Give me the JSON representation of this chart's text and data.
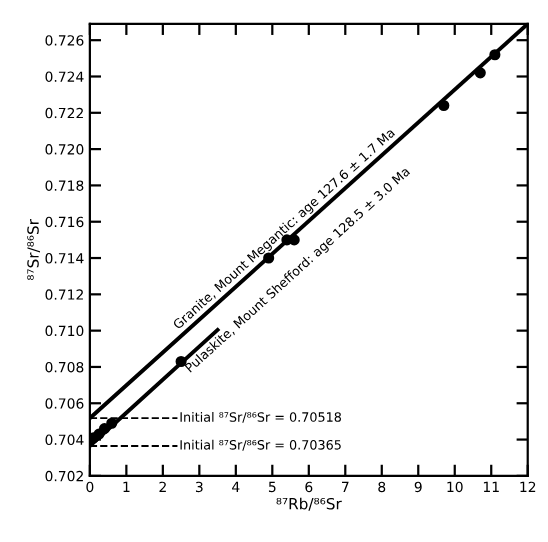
{
  "chart_data": {
    "type": "line",
    "xlabel": "⁸⁷Rb/⁸⁶Sr",
    "ylabel": "⁸⁷Sr/⁸⁶Sr",
    "xlim": [
      0,
      12
    ],
    "ylim": [
      0.702,
      0.7269
    ],
    "xticks": [
      0,
      1,
      2,
      3,
      4,
      5,
      6,
      7,
      8,
      9,
      10,
      11,
      12
    ],
    "yticks": [
      {
        "value": 0.702,
        "label": "0.702"
      },
      {
        "value": 0.704,
        "label": "0.704"
      },
      {
        "value": 0.706,
        "label": "0.706"
      },
      {
        "value": 0.708,
        "label": "0.708"
      },
      {
        "value": 0.71,
        "label": "0.710"
      },
      {
        "value": 0.712,
        "label": "0.712"
      },
      {
        "value": 0.714,
        "label": "0.714"
      },
      {
        "value": 0.716,
        "label": "0.716"
      },
      {
        "value": 0.718,
        "label": "0.718"
      },
      {
        "value": 0.72,
        "label": "0.720"
      },
      {
        "value": 0.722,
        "label": "0.722"
      },
      {
        "value": 0.724,
        "label": "0.724"
      },
      {
        "value": 0.726,
        "label": "0.726"
      }
    ],
    "grid": false,
    "series": [
      {
        "color": "#000000",
        "x": [
          0,
          12
        ],
        "values": [
          0.70518,
          0.7269
        ]
      },
      {
        "type": "scatter",
        "color": "#000000",
        "marker": "circle",
        "x": [
          4.9,
          5.4,
          5.6,
          9.7,
          10.7,
          11.1
        ],
        "values": [
          0.714,
          0.715,
          0.715,
          0.7224,
          0.7242,
          0.7252
        ]
      },
      {
        "color": "#000000",
        "x": [
          0,
          3.5
        ],
        "values": [
          0.70365,
          0.71004
        ]
      },
      {
        "type": "scatter",
        "color": "#000000",
        "marker": "circle",
        "x": [
          0.1,
          0.25,
          0.4,
          0.6,
          2.5
        ],
        "values": [
          0.7041,
          0.7043,
          0.7046,
          0.7049,
          0.7083
        ]
      }
    ],
    "ref_lines": [
      {
        "axis": "y",
        "value": 0.70518,
        "label": "Initial ⁸⁷Sr/⁸⁶Sr = 0.70518",
        "line_style": "dashed"
      },
      {
        "axis": "y",
        "value": 0.70365,
        "label": "Initial ⁸⁷Sr/⁸⁶Sr = 0.70365",
        "line_style": "dashed"
      }
    ],
    "annotations": [
      "Granite, Mount Megantic: age 127.6 ± 1.7 Ma",
      "Pulaskite, Mount Shefford: age 128.5 ± 3.0 Ma"
    ]
  }
}
